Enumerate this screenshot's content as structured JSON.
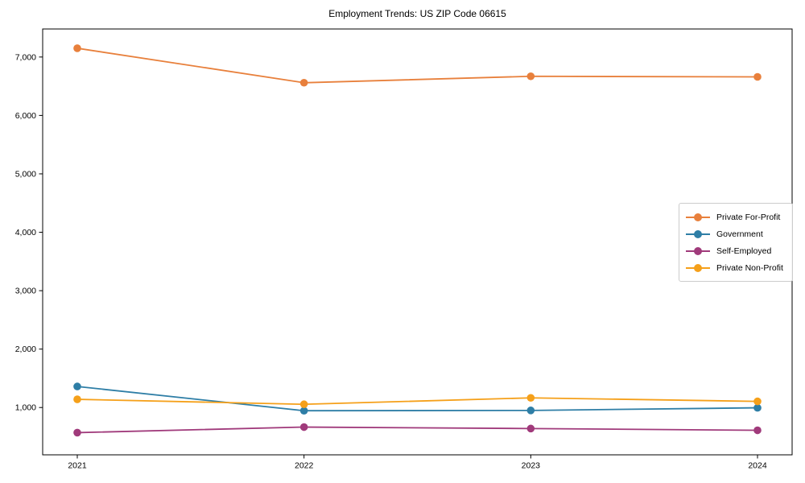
{
  "chart_data": {
    "type": "line",
    "title": "Employment Trends: US ZIP Code 06615",
    "x": [
      "2021",
      "2022",
      "2023",
      "2024"
    ],
    "series": [
      {
        "name": "Private For-Profit",
        "color": "#E8803C",
        "values": [
          7150,
          6560,
          6670,
          6660
        ]
      },
      {
        "name": "Government",
        "color": "#2E7EA6",
        "values": [
          1360,
          945,
          950,
          995
        ]
      },
      {
        "name": "Self-Employed",
        "color": "#A03A7B",
        "values": [
          570,
          665,
          640,
          610
        ]
      },
      {
        "name": "Private Non-Profit",
        "color": "#F5A01A",
        "values": [
          1140,
          1055,
          1165,
          1105
        ]
      }
    ],
    "yticks": [
      1000,
      2000,
      3000,
      4000,
      5000,
      6000,
      7000
    ],
    "ylim": [
      190,
      7480
    ],
    "xlabel": "",
    "ylabel": "",
    "grid": false,
    "legend_position": "right-middle",
    "marker": "circle",
    "axis_color": "#000000",
    "background_color": "#ffffff",
    "legend_border_color": "#cccccc"
  }
}
